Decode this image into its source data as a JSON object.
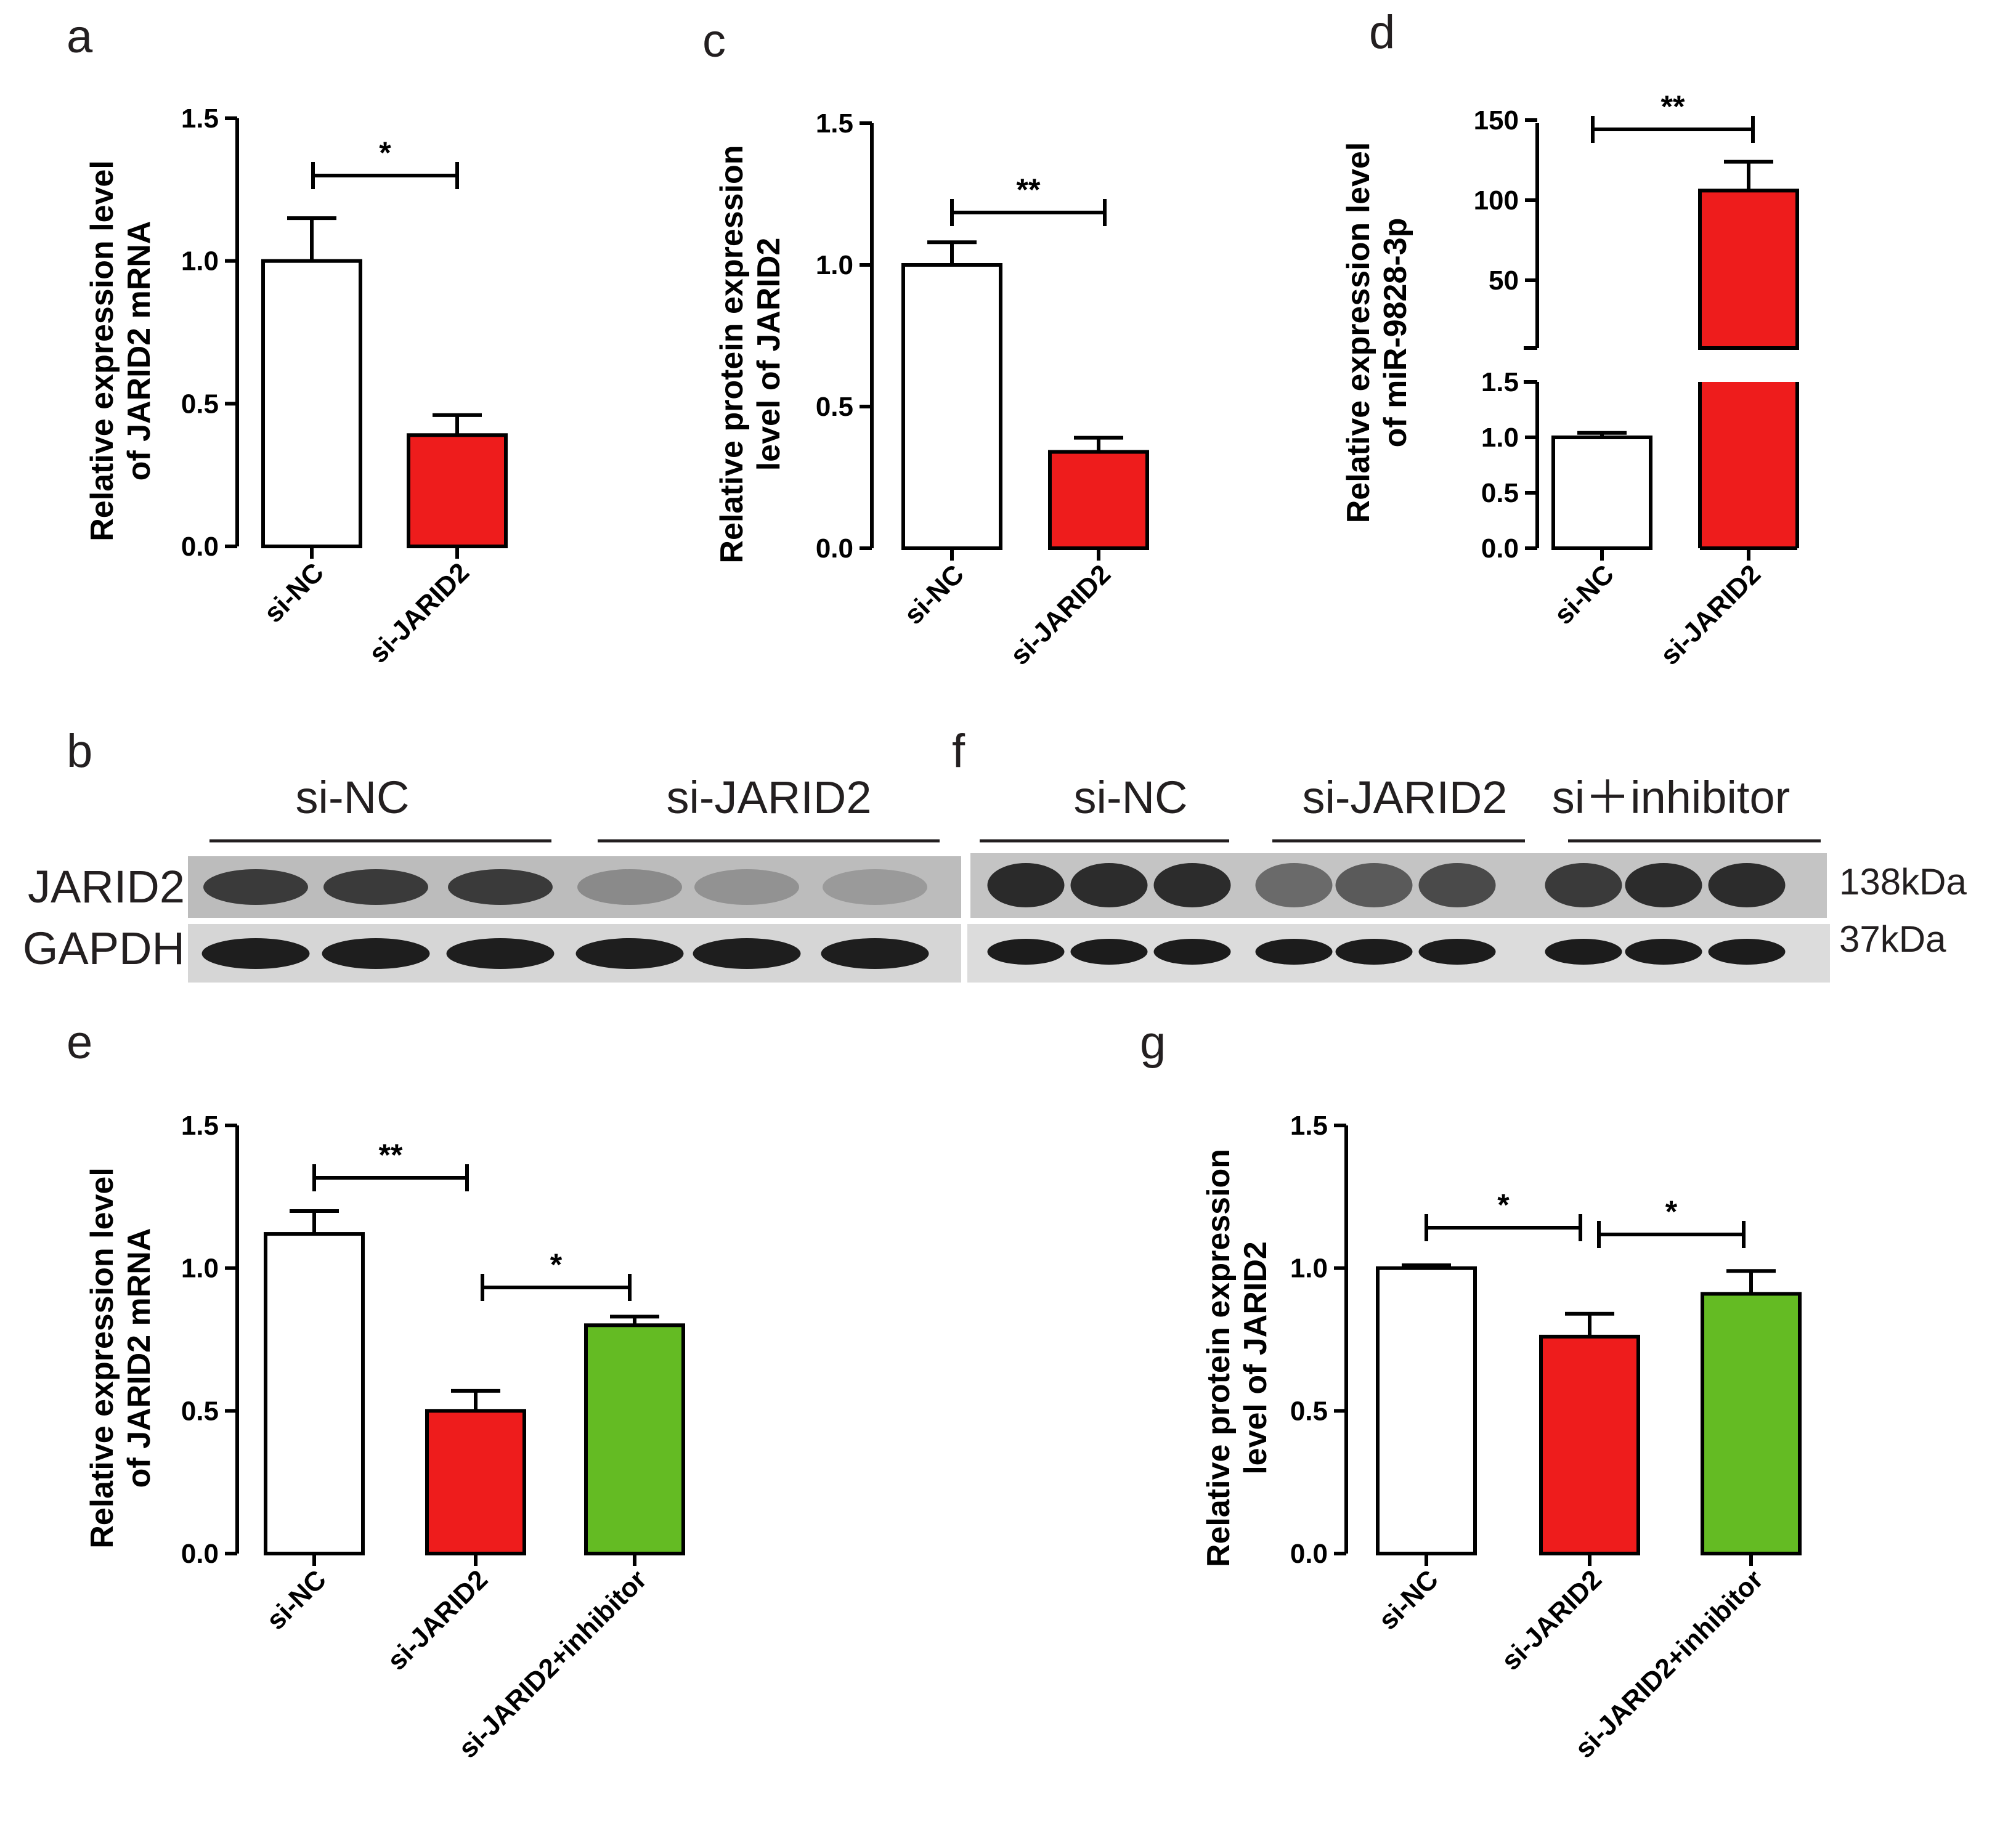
{
  "chart_data": [
    {
      "panel": "a",
      "type": "bar",
      "ylabel": [
        "Relative expression level",
        "of JARID2 mRNA"
      ],
      "categories": [
        "si-NC",
        "si-JARID2"
      ],
      "values": [
        1.0,
        0.39
      ],
      "errors": [
        0.15,
        0.07
      ],
      "colors": [
        "#ffffff",
        "#ee1c1c"
      ],
      "ylim": [
        0,
        1.5
      ],
      "yticks": [
        "0.0",
        "0.5",
        "1.0",
        "1.5"
      ],
      "significance": [
        {
          "from": 0,
          "to": 1,
          "label": "*"
        }
      ]
    },
    {
      "panel": "c",
      "type": "bar",
      "ylabel": [
        "Relative protein expression",
        "level of JARID2"
      ],
      "categories": [
        "si-NC",
        "si-JARID2"
      ],
      "values": [
        1.0,
        0.34
      ],
      "errors": [
        0.08,
        0.05
      ],
      "colors": [
        "#ffffff",
        "#ee1c1c"
      ],
      "ylim": [
        0,
        1.5
      ],
      "yticks": [
        "0.0",
        "0.5",
        "1.0",
        "1.5"
      ],
      "significance": [
        {
          "from": 0,
          "to": 1,
          "label": "**"
        }
      ]
    },
    {
      "panel": "d",
      "type": "bar",
      "ylabel": [
        "Relative expression level",
        "of miR-9828-3p"
      ],
      "categories": [
        "si-NC",
        "si-JARID2"
      ],
      "values": [
        1.0,
        106
      ],
      "errors": [
        0.04,
        18
      ],
      "colors": [
        "#ffffff",
        "#ee1c1c"
      ],
      "broken_axis": true,
      "lower_ylim": [
        0,
        1.5
      ],
      "upper_ylim": [
        0,
        150
      ],
      "lower_yticks": [
        "0.0",
        "0.5",
        "1.0",
        "1.5"
      ],
      "upper_yticks": [
        "50",
        "100",
        "150"
      ],
      "significance": [
        {
          "from": 0,
          "to": 1,
          "label": "**"
        }
      ]
    },
    {
      "panel": "e",
      "type": "bar",
      "ylabel": [
        "Relative expression level",
        "of JARID2 mRNA"
      ],
      "categories": [
        "si-NC",
        "si-JARID2",
        "si-JARID2+inhibitor"
      ],
      "values": [
        1.12,
        0.5,
        0.8
      ],
      "errors": [
        0.08,
        0.07,
        0.03
      ],
      "colors": [
        "#ffffff",
        "#ee1c1c",
        "#64bb23"
      ],
      "ylim": [
        0,
        1.5
      ],
      "yticks": [
        "0.0",
        "0.5",
        "1.0",
        "1.5"
      ],
      "significance": [
        {
          "from": 0,
          "to": 1,
          "label": "**"
        },
        {
          "from": 1,
          "to": 2,
          "label": "*"
        }
      ]
    },
    {
      "panel": "g",
      "type": "bar",
      "ylabel": [
        "Relative protein expression",
        "level of JARID2"
      ],
      "categories": [
        "si-NC",
        "si-JARID2",
        "si-JARID2+inhibitor"
      ],
      "values": [
        1.0,
        0.76,
        0.91
      ],
      "errors": [
        0.01,
        0.08,
        0.08
      ],
      "colors": [
        "#ffffff",
        "#ee1c1c",
        "#64bb23"
      ],
      "ylim": [
        0,
        1.5
      ],
      "yticks": [
        "0.0",
        "0.5",
        "1.0",
        "1.5"
      ],
      "significance": [
        {
          "from": 0,
          "to": 1,
          "label": "*"
        },
        {
          "from": 1,
          "to": 2,
          "label": "*"
        }
      ]
    }
  ],
  "panel_letters": {
    "a": "a",
    "b": "b",
    "c": "c",
    "d": "d",
    "e": "e",
    "f": "f",
    "g": "g"
  },
  "blot_b": {
    "groups": [
      "si-NC",
      "si-JARID2"
    ],
    "rows": [
      "JARID2",
      "GAPDH"
    ]
  },
  "blot_f": {
    "groups": [
      "si-NC",
      "si-JARID2",
      "si＋inhibitor"
    ],
    "markers": [
      "138kDa",
      "37kDa"
    ]
  }
}
